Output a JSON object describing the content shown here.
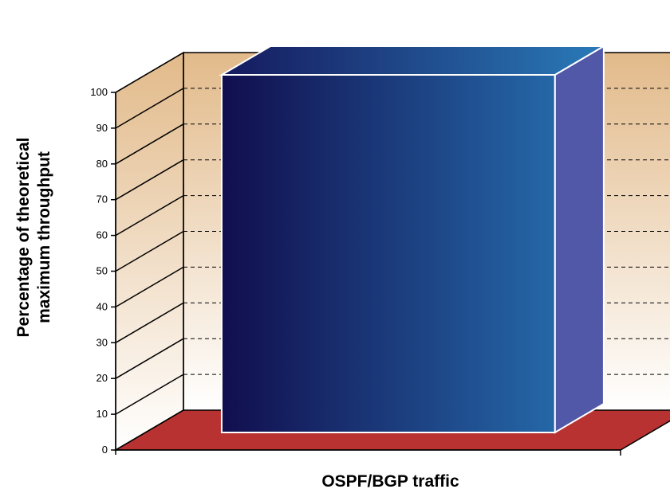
{
  "chart_data": {
    "type": "bar",
    "categories": [
      ""
    ],
    "series": [
      {
        "values": [
          100
        ]
      }
    ],
    "xlabel": "OSPF/BGP traffic",
    "ylabel_line1": "Percentage of theoretical",
    "ylabel_line2": "maximum throughput",
    "ylim": [
      0,
      100
    ],
    "yticks": [
      "0",
      "10",
      "20",
      "30",
      "40",
      "50",
      "60",
      "70",
      "80",
      "90",
      "100"
    ],
    "grid": true,
    "style": "3d",
    "colors": {
      "bar_front_start": "#110e4e",
      "bar_front_end": "#2567a8",
      "bar_top_start": "#151a5e",
      "bar_top_end": "#2a7ab8",
      "bar_side": "#5158a8",
      "wall_top": "#e2ba8a",
      "wall_bottom": "#ffffff",
      "floor": "#b83232"
    }
  }
}
